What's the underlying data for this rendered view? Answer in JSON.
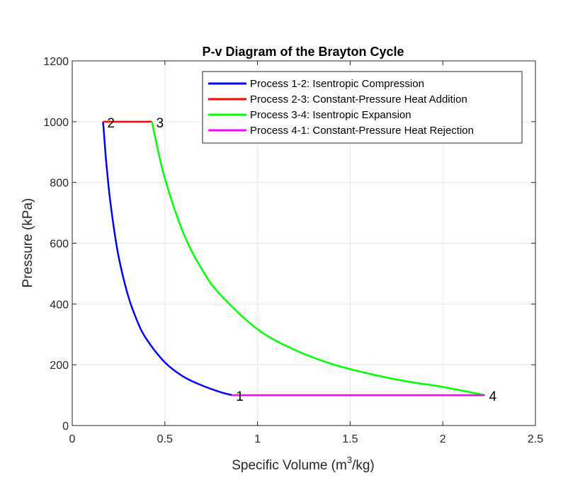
{
  "chart_data": {
    "type": "line",
    "title": "P-v Diagram of the Brayton Cycle",
    "xlabel": "Specific Volume (m",
    "xlabel_sup": "3",
    "xlabel_tail": "/kg)",
    "ylabel": "Pressure (kPa)",
    "xlim": [
      0,
      2.5
    ],
    "ylim": [
      0,
      1200
    ],
    "xticks": [
      0,
      0.5,
      1,
      1.5,
      2,
      2.5
    ],
    "xtick_labels": [
      "0",
      "0.5",
      "1",
      "1.5",
      "2",
      "2.5"
    ],
    "yticks": [
      0,
      200,
      400,
      600,
      800,
      1000,
      1200
    ],
    "ytick_labels": [
      "0",
      "200",
      "400",
      "600",
      "800",
      "1000",
      "1200"
    ],
    "grid": true,
    "legend_position": "top-right",
    "series": [
      {
        "name": "Process 1-2: Isentropic Compression",
        "color": "#0000ff",
        "x": [
          0.861,
          0.8,
          0.7,
          0.6,
          0.5,
          0.4,
          0.35,
          0.3,
          0.25,
          0.22,
          0.2,
          0.19,
          0.18,
          0.17,
          0.166
        ],
        "y": [
          100,
          110,
          132,
          161,
          208,
          285,
          345,
          430,
          557,
          670,
          765,
          825,
          891,
          972,
          1000
        ]
      },
      {
        "name": "Process 2-3: Constant-Pressure Heat Addition",
        "color": "#ff0000",
        "x": [
          0.166,
          0.43
        ],
        "y": [
          1000,
          1000
        ]
      },
      {
        "name": "Process 3-4: Isentropic Expansion",
        "color": "#00ff00",
        "x": [
          0.43,
          0.45,
          0.5,
          0.6,
          0.7,
          0.8,
          1.0,
          1.2,
          1.4,
          1.6,
          1.8,
          2.0,
          2.227
        ],
        "y": [
          1000,
          942,
          813,
          633,
          514,
          430,
          317,
          249,
          203,
          171,
          146,
          127,
          100
        ]
      },
      {
        "name": "Process 4-1: Constant-Pressure Heat Rejection",
        "color": "#ff00ff",
        "x": [
          2.227,
          0.861
        ],
        "y": [
          100,
          100
        ]
      }
    ],
    "annotations": [
      {
        "text": "1",
        "x": 0.861,
        "y": 100
      },
      {
        "text": "2",
        "x": 0.166,
        "y": 1000
      },
      {
        "text": "3",
        "x": 0.43,
        "y": 1000
      },
      {
        "text": "4",
        "x": 2.227,
        "y": 100
      }
    ]
  }
}
